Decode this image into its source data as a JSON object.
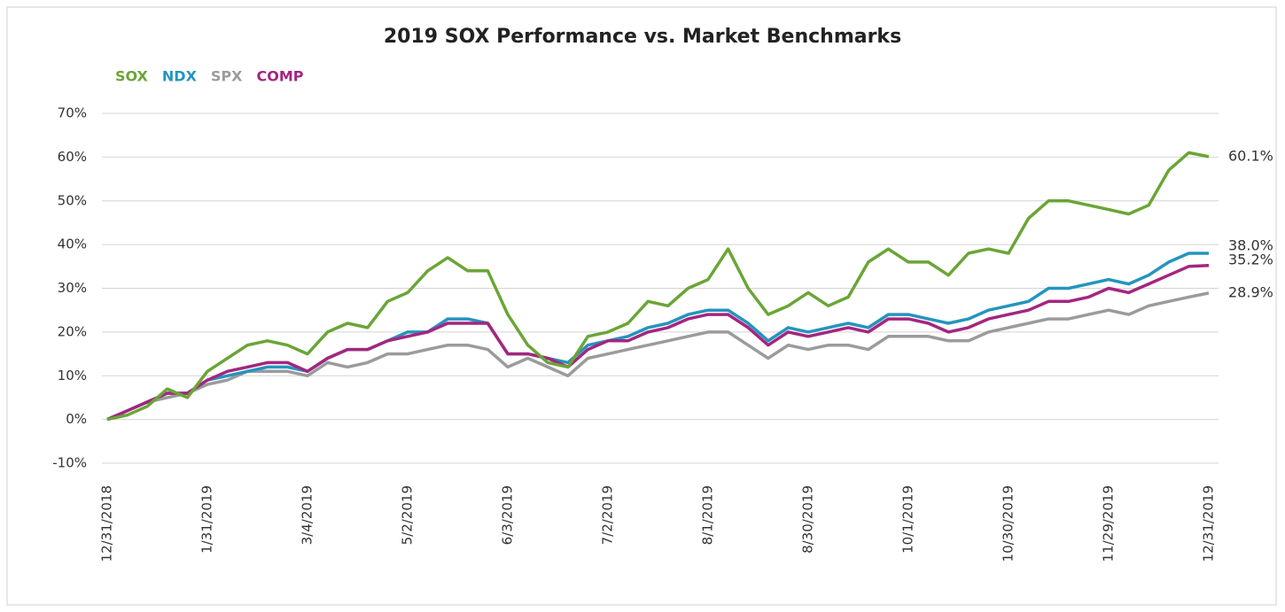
{
  "chart_data": {
    "type": "line",
    "title": "2019 SOX Performance vs. Market Benchmarks",
    "categories": [
      "12/31/2018",
      null,
      null,
      null,
      null,
      "1/31/2019",
      null,
      null,
      null,
      null,
      "3/4/2019",
      null,
      null,
      null,
      null,
      "5/2/2019",
      null,
      null,
      null,
      null,
      "6/3/2019",
      null,
      null,
      null,
      null,
      "7/2/2019",
      null,
      null,
      null,
      null,
      "8/1/2019",
      null,
      null,
      null,
      null,
      "8/30/2019",
      null,
      null,
      null,
      null,
      "10/1/2019",
      null,
      null,
      null,
      null,
      "10/30/2019",
      null,
      null,
      null,
      null,
      "11/29/2019",
      null,
      null,
      null,
      null,
      "12/31/2019"
    ],
    "ylim": [
      -10,
      70
    ],
    "yticks": [
      {
        "value": -10,
        "label": "-10%"
      },
      {
        "value": 0,
        "label": "0%"
      },
      {
        "value": 10,
        "label": "10%"
      },
      {
        "value": 20,
        "label": "20%"
      },
      {
        "value": 30,
        "label": "30%"
      },
      {
        "value": 40,
        "label": "40%"
      },
      {
        "value": 50,
        "label": "50%"
      },
      {
        "value": 60,
        "label": "60%"
      },
      {
        "value": 70,
        "label": "70%"
      }
    ],
    "grid": true,
    "legend": "top-left",
    "series": [
      {
        "name": "SOX",
        "color": "#6aa536",
        "values": [
          0,
          1,
          3,
          7,
          5,
          11,
          14,
          17,
          18,
          17,
          15,
          20,
          22,
          21,
          27,
          29,
          34,
          37,
          34,
          34,
          24,
          17,
          13,
          12,
          19,
          20,
          22,
          27,
          26,
          30,
          32,
          39,
          30,
          24,
          26,
          29,
          26,
          28,
          36,
          39,
          36,
          36,
          33,
          38,
          39,
          38,
          46,
          50,
          50,
          49,
          48,
          47,
          49,
          57,
          61,
          60.1
        ],
        "value_labels": [
          null,
          null,
          null,
          null,
          null,
          null,
          null,
          null,
          null,
          null,
          null,
          null,
          null,
          null,
          null,
          null,
          null,
          null,
          null,
          null,
          null,
          null,
          null,
          null,
          null,
          null,
          null,
          null,
          null,
          null,
          null,
          null,
          null,
          null,
          null,
          null,
          null,
          null,
          null,
          null,
          null,
          null,
          null,
          null,
          null,
          null,
          null,
          null,
          null,
          null,
          null,
          null,
          null,
          null,
          null,
          "60.1%"
        ]
      },
      {
        "name": "NDX",
        "color": "#2594be",
        "values": [
          0,
          2,
          4,
          6,
          6,
          9,
          10,
          11,
          12,
          12,
          11,
          14,
          16,
          16,
          18,
          20,
          20,
          23,
          23,
          22,
          15,
          15,
          14,
          13,
          17,
          18,
          19,
          21,
          22,
          24,
          25,
          25,
          22,
          18,
          21,
          20,
          21,
          22,
          21,
          24,
          24,
          23,
          22,
          23,
          25,
          26,
          27,
          30,
          30,
          31,
          32,
          31,
          33,
          36,
          38,
          38.0
        ],
        "value_labels": [
          null,
          null,
          null,
          null,
          null,
          null,
          null,
          null,
          null,
          null,
          null,
          null,
          null,
          null,
          null,
          null,
          null,
          null,
          null,
          null,
          null,
          null,
          null,
          null,
          null,
          null,
          null,
          null,
          null,
          null,
          null,
          null,
          null,
          null,
          null,
          null,
          null,
          null,
          null,
          null,
          null,
          null,
          null,
          null,
          null,
          null,
          null,
          null,
          null,
          null,
          null,
          null,
          null,
          null,
          null,
          "38.0%"
        ]
      },
      {
        "name": "SPX",
        "color": "#9b9b9b",
        "values": [
          0,
          2,
          4,
          5,
          6,
          8,
          9,
          11,
          11,
          11,
          10,
          13,
          12,
          13,
          15,
          15,
          16,
          17,
          17,
          16,
          12,
          14,
          12,
          10,
          14,
          15,
          16,
          17,
          18,
          19,
          20,
          20,
          17,
          14,
          17,
          16,
          17,
          17,
          16,
          19,
          19,
          19,
          18,
          18,
          20,
          21,
          22,
          23,
          23,
          24,
          25,
          24,
          26,
          27,
          28,
          28.9
        ],
        "value_labels": [
          null,
          null,
          null,
          null,
          null,
          null,
          null,
          null,
          null,
          null,
          null,
          null,
          null,
          null,
          null,
          null,
          null,
          null,
          null,
          null,
          null,
          null,
          null,
          null,
          null,
          null,
          null,
          null,
          null,
          null,
          null,
          null,
          null,
          null,
          null,
          null,
          null,
          null,
          null,
          null,
          null,
          null,
          null,
          null,
          null,
          null,
          null,
          null,
          null,
          null,
          null,
          null,
          null,
          null,
          null,
          "28.9%"
        ]
      },
      {
        "name": "COMP",
        "color": "#a3267f",
        "values": [
          0,
          2,
          4,
          6,
          6,
          9,
          11,
          12,
          13,
          13,
          11,
          14,
          16,
          16,
          18,
          19,
          20,
          22,
          22,
          22,
          15,
          15,
          14,
          12,
          16,
          18,
          18,
          20,
          21,
          23,
          24,
          24,
          21,
          17,
          20,
          19,
          20,
          21,
          20,
          23,
          23,
          22,
          20,
          21,
          23,
          24,
          25,
          27,
          27,
          28,
          30,
          29,
          31,
          33,
          35,
          35.2
        ],
        "value_labels": [
          null,
          null,
          null,
          null,
          null,
          null,
          null,
          null,
          null,
          null,
          null,
          null,
          null,
          null,
          null,
          null,
          null,
          null,
          null,
          null,
          null,
          null,
          null,
          null,
          null,
          null,
          null,
          null,
          null,
          null,
          null,
          null,
          null,
          null,
          null,
          null,
          null,
          null,
          null,
          null,
          null,
          null,
          null,
          null,
          null,
          null,
          null,
          null,
          null,
          null,
          null,
          null,
          null,
          null,
          null,
          "35.2%"
        ]
      }
    ]
  }
}
